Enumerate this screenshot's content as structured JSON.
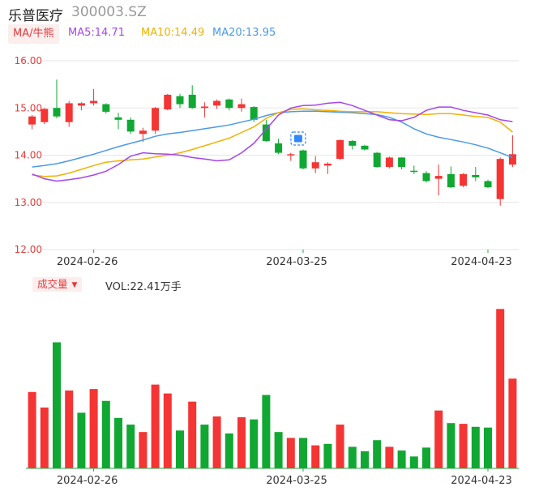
{
  "header": {
    "name": "乐普医疗",
    "code": "300003.SZ"
  },
  "ma_legend": {
    "tag": "MA/牛熊",
    "ma5": "MA5:14.71",
    "ma10": "MA10:14.49",
    "ma20": "MA20:13.95"
  },
  "volume_legend": {
    "tag": "成交量",
    "caret": "▼",
    "value": "VOL:22.41万手"
  },
  "colors": {
    "up": "#f53434",
    "down": "#10a832",
    "ma5": "#a646e9",
    "ma10": "#f2b100",
    "ma20": "#4a9ae6",
    "grid": "#e6e6e6",
    "axis": "#2aa540"
  },
  "chart_data": [
    {
      "type": "candlestick",
      "title": "",
      "ylim": [
        12.0,
        16.0
      ],
      "yticks": [
        "16.00",
        "15.00",
        "14.00",
        "13.00",
        "12.00"
      ],
      "xtick_labels": [
        {
          "index": 5,
          "label": "2024-02-26"
        },
        {
          "index": 22,
          "label": "2024-03-25"
        },
        {
          "index": 37,
          "label": "2024-04-23"
        }
      ],
      "candles": [
        [
          14.65,
          14.82,
          14.55,
          14.85
        ],
        [
          14.7,
          14.98,
          14.66,
          15.0
        ],
        [
          15.0,
          14.82,
          14.78,
          15.6
        ],
        [
          14.7,
          15.1,
          14.6,
          15.15
        ],
        [
          15.05,
          15.1,
          14.95,
          15.12
        ],
        [
          15.1,
          15.15,
          15.05,
          15.4
        ],
        [
          15.08,
          14.92,
          14.88,
          15.1
        ],
        [
          14.8,
          14.75,
          14.55,
          14.9
        ],
        [
          14.75,
          14.5,
          14.45,
          14.8
        ],
        [
          14.45,
          14.52,
          14.28,
          14.58
        ],
        [
          14.52,
          15.0,
          14.45,
          15.02
        ],
        [
          14.97,
          15.28,
          14.95,
          15.3
        ],
        [
          15.25,
          15.08,
          15.0,
          15.3
        ],
        [
          15.28,
          15.0,
          14.98,
          15.48
        ],
        [
          15.0,
          15.03,
          14.8,
          15.12
        ],
        [
          15.05,
          15.15,
          14.98,
          15.18
        ],
        [
          15.18,
          15.0,
          14.95,
          15.2
        ],
        [
          15.0,
          15.08,
          14.92,
          15.2
        ],
        [
          15.02,
          14.75,
          14.7,
          15.04
        ],
        [
          14.65,
          14.3,
          14.28,
          14.75
        ],
        [
          14.25,
          14.05,
          14.02,
          14.35
        ],
        [
          14.0,
          14.02,
          13.88,
          14.05
        ],
        [
          14.1,
          13.72,
          13.7,
          14.12
        ],
        [
          13.72,
          13.85,
          13.62,
          13.98
        ],
        [
          13.78,
          13.82,
          13.6,
          13.85
        ],
        [
          13.92,
          14.32,
          13.9,
          14.33
        ],
        [
          14.3,
          14.2,
          14.12,
          14.32
        ],
        [
          14.2,
          14.12,
          14.1,
          14.22
        ],
        [
          14.05,
          13.75,
          13.73,
          14.07
        ],
        [
          13.75,
          13.95,
          13.72,
          13.97
        ],
        [
          13.95,
          13.75,
          13.7,
          13.96
        ],
        [
          13.67,
          13.65,
          13.6,
          13.78
        ],
        [
          13.62,
          13.45,
          13.42,
          13.66
        ],
        [
          13.5,
          13.56,
          13.15,
          13.8
        ],
        [
          13.6,
          13.32,
          13.3,
          13.76
        ],
        [
          13.35,
          13.6,
          13.32,
          13.62
        ],
        [
          13.58,
          13.53,
          13.45,
          13.75
        ],
        [
          13.45,
          13.32,
          13.3,
          13.48
        ],
        [
          13.07,
          13.92,
          12.93,
          13.95
        ],
        [
          13.8,
          14.02,
          13.75,
          14.42
        ]
      ],
      "ma5": [
        13.6,
        13.5,
        13.45,
        13.48,
        13.52,
        13.58,
        13.66,
        13.8,
        13.98,
        14.05,
        14.03,
        14.02,
        14.0,
        13.95,
        13.92,
        13.88,
        13.9,
        14.05,
        14.25,
        14.55,
        14.85,
        15.0,
        15.05,
        15.06,
        15.1,
        15.12,
        15.05,
        14.95,
        14.85,
        14.75,
        14.73,
        14.8,
        14.95,
        15.02,
        15.02,
        14.95,
        14.9,
        14.85,
        14.75,
        14.71
      ],
      "ma10": [
        13.58,
        13.55,
        13.56,
        13.62,
        13.7,
        13.78,
        13.85,
        13.88,
        13.9,
        13.92,
        13.96,
        14.0,
        14.05,
        14.12,
        14.2,
        14.28,
        14.36,
        14.48,
        14.6,
        14.78,
        14.9,
        14.97,
        14.98,
        14.96,
        14.95,
        14.93,
        14.92,
        14.92,
        14.92,
        14.9,
        14.88,
        14.87,
        14.86,
        14.88,
        14.88,
        14.85,
        14.82,
        14.8,
        14.7,
        14.49
      ],
      "ma20": [
        13.75,
        13.78,
        13.82,
        13.88,
        13.95,
        14.02,
        14.1,
        14.18,
        14.25,
        14.32,
        14.4,
        14.45,
        14.48,
        14.52,
        14.56,
        14.6,
        14.64,
        14.7,
        14.76,
        14.84,
        14.9,
        14.92,
        14.93,
        14.93,
        14.92,
        14.91,
        14.9,
        14.88,
        14.86,
        14.8,
        14.7,
        14.56,
        14.45,
        14.38,
        14.33,
        14.28,
        14.22,
        14.15,
        14.05,
        13.95
      ]
    },
    {
      "type": "bar",
      "title": "",
      "categories_count": 40,
      "xtick_labels": [
        {
          "index": 5,
          "label": "2024-02-26"
        },
        {
          "index": 22,
          "label": "2024-03-25"
        },
        {
          "index": 37,
          "label": "2024-04-23"
        }
      ],
      "ylim": [
        0,
        22.41
      ],
      "values": [
        10.3,
        8.2,
        17.0,
        10.5,
        7.5,
        10.7,
        9.1,
        6.8,
        5.9,
        4.9,
        11.3,
        10.1,
        5.1,
        9.0,
        5.9,
        7.0,
        4.7,
        6.9,
        6.6,
        9.9,
        4.9,
        4.1,
        4.1,
        3.1,
        3.3,
        5.9,
        2.9,
        2.3,
        3.8,
        2.9,
        2.4,
        1.6,
        2.8,
        7.8,
        6.1,
        6.0,
        5.6,
        5.5,
        21.5,
        12.1
      ],
      "up": [
        true,
        true,
        false,
        true,
        false,
        true,
        false,
        false,
        false,
        true,
        true,
        true,
        false,
        true,
        false,
        true,
        false,
        true,
        false,
        false,
        false,
        true,
        false,
        true,
        false,
        true,
        false,
        false,
        false,
        true,
        false,
        false,
        false,
        true,
        false,
        true,
        false,
        false,
        true,
        true
      ]
    }
  ]
}
